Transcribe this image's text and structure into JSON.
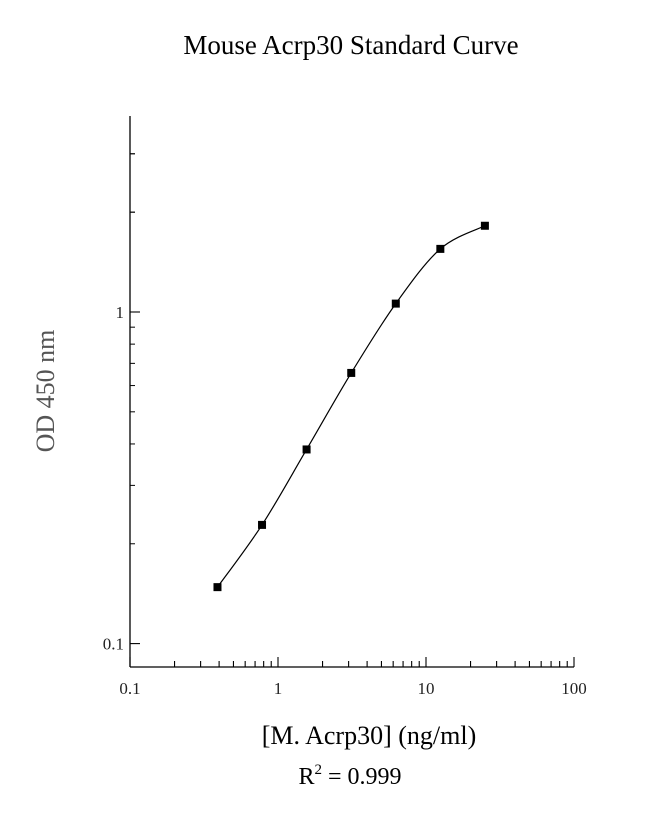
{
  "chart_data": {
    "type": "scatter",
    "title": "Mouse Acrp30 Standard Curve",
    "xlabel": "[M. Acrp30] (ng/ml)",
    "ylabel": "OD 450 nm",
    "x_scale": "log",
    "y_scale": "log",
    "xlim": [
      0.1,
      100
    ],
    "ylim": [
      0.085,
      3.9
    ],
    "x_tick_labels": [
      "0.1",
      "1",
      "10",
      "100"
    ],
    "y_tick_labels": [
      "0.1",
      "1"
    ],
    "points": [
      {
        "x": 0.39,
        "y": 0.148
      },
      {
        "x": 0.78,
        "y": 0.228
      },
      {
        "x": 1.56,
        "y": 0.385
      },
      {
        "x": 3.125,
        "y": 0.655
      },
      {
        "x": 6.25,
        "y": 1.06
      },
      {
        "x": 12.5,
        "y": 1.55
      },
      {
        "x": 25,
        "y": 1.82
      }
    ],
    "fit": {
      "type": "smooth curve",
      "r2_label": "R",
      "r2_exponent": "2",
      "r2_text": " = 0.999"
    },
    "grid": false,
    "legend": "none"
  }
}
